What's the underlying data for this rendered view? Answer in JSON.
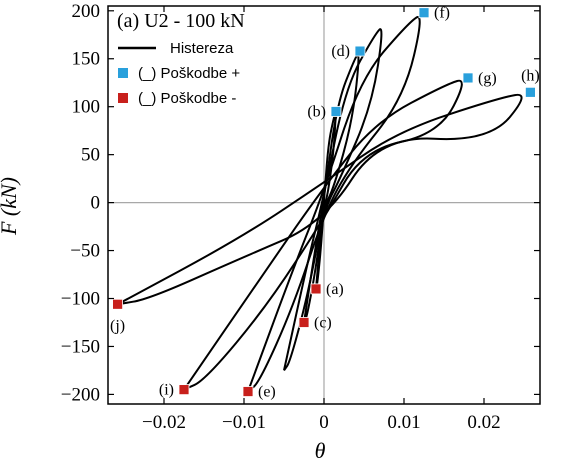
{
  "chart_data": {
    "type": "line",
    "title": "(a) U2 - 100 kN",
    "xlabel": "θ",
    "ylabel": "F (kN)",
    "xlim": [
      -0.027,
      0.027
    ],
    "ylim": [
      -210,
      205
    ],
    "xticks": [
      -0.02,
      -0.01,
      0,
      0.01,
      0.02
    ],
    "xtick_labels": [
      "−0.02",
      "−0.01",
      "0",
      "0.01",
      "0.02"
    ],
    "yticks": [
      -200,
      -150,
      -100,
      -50,
      0,
      50,
      100,
      150,
      200
    ],
    "ytick_labels": [
      "−200",
      "−150",
      "−100",
      "−50",
      "0",
      "50",
      "100",
      "150",
      "200"
    ],
    "grid": false,
    "zero_lines": true,
    "legend_position": "top-left",
    "legend": [
      {
        "label": "Histereza",
        "kind": "line",
        "color": "#000000"
      },
      {
        "label": "(_) Poškodbe +",
        "kind": "marker",
        "color": "#29a0dc"
      },
      {
        "label": "(_) Poškodbe -",
        "kind": "marker",
        "color": "#c8201c"
      }
    ],
    "series": [
      {
        "name": "Histereza",
        "color": "#000000",
        "loops": [
          {
            "peak_pos": [
              0.0015,
              95
            ],
            "peak_neg": [
              -0.001,
              -90
            ],
            "res_up": 5,
            "res_down": -5
          },
          {
            "peak_pos": [
              0.0045,
              158
            ],
            "peak_neg": [
              -0.0025,
              -125
            ],
            "res_up": 15,
            "res_down": -15
          },
          {
            "peak_pos": [
              0.0075,
              185
            ],
            "peak_neg": [
              -0.005,
              -175
            ],
            "res_up": 25,
            "res_down": -25
          },
          {
            "peak_pos": [
              0.0125,
              198
            ],
            "peak_neg": [
              -0.0095,
              -197
            ],
            "res_up": 40,
            "res_down": -40
          },
          {
            "peak_pos": [
              0.018,
              130
            ],
            "peak_neg": [
              -0.0175,
              -195
            ],
            "res_up": 55,
            "res_down": -55
          },
          {
            "peak_pos": [
              0.0258,
              115
            ],
            "peak_neg": [
              -0.0258,
              -106
            ],
            "res_up": 70,
            "res_down": -70
          }
        ]
      }
    ],
    "markers": [
      {
        "label": "(a)",
        "x": -0.001,
        "y": -90,
        "sign": "neg",
        "text_side": "right"
      },
      {
        "label": "(b)",
        "x": 0.0015,
        "y": 95,
        "sign": "pos",
        "text_side": "left"
      },
      {
        "label": "(c)",
        "x": -0.0025,
        "y": -125,
        "sign": "neg",
        "text_side": "right"
      },
      {
        "label": "(d)",
        "x": 0.0045,
        "y": 158,
        "sign": "pos",
        "text_side": "left"
      },
      {
        "label": "(e)",
        "x": -0.0095,
        "y": -197,
        "sign": "neg",
        "text_side": "right"
      },
      {
        "label": "(f)",
        "x": 0.0125,
        "y": 198,
        "sign": "pos",
        "text_side": "right"
      },
      {
        "label": "(g)",
        "x": 0.018,
        "y": 130,
        "sign": "pos",
        "text_side": "right"
      },
      {
        "label": "(h)",
        "x": 0.0258,
        "y": 115,
        "sign": "pos",
        "text_side": "above"
      },
      {
        "label": "(i)",
        "x": -0.0175,
        "y": -195,
        "sign": "neg",
        "text_side": "left"
      },
      {
        "label": "(j)",
        "x": -0.0258,
        "y": -106,
        "sign": "neg",
        "text_side": "below"
      }
    ]
  }
}
